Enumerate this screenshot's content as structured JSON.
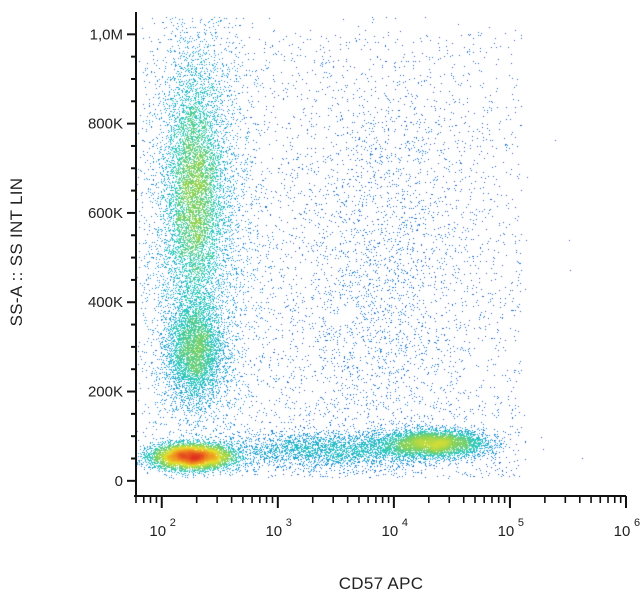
{
  "chart_data": {
    "type": "scatter",
    "subtype": "flow-cytometry-density-dot-plot",
    "title": "",
    "xlabel": "CD57 APC",
    "ylabel": "SS-A :: SS INT LIN",
    "x_scale": "log",
    "y_scale": "linear",
    "xlim": [
      60,
      1000000
    ],
    "ylim": [
      -25000,
      1050000
    ],
    "x_ticks": [
      {
        "value": 100,
        "label": "10",
        "exp": "2"
      },
      {
        "value": 1000,
        "label": "10",
        "exp": "3"
      },
      {
        "value": 10000,
        "label": "10",
        "exp": "4"
      },
      {
        "value": 100000,
        "label": "10",
        "exp": "5"
      },
      {
        "value": 1000000,
        "label": "10",
        "exp": "6"
      }
    ],
    "y_ticks": [
      {
        "value": 0,
        "label": "0"
      },
      {
        "value": 200000,
        "label": "200K"
      },
      {
        "value": 400000,
        "label": "400K"
      },
      {
        "value": 600000,
        "label": "600K"
      },
      {
        "value": 800000,
        "label": "800K"
      },
      {
        "value": 1000000,
        "label": "1,0M"
      }
    ],
    "grid": false,
    "legend": "none",
    "colormap": [
      "#2a3db5",
      "#1e8fd8",
      "#2ec9c4",
      "#8ad35a",
      "#e8e02a",
      "#f08a1e",
      "#e0301e"
    ],
    "populations": [
      {
        "x": 180,
        "y": 55000,
        "sx_decades": 0.17,
        "sy": 14000,
        "weight": 0.17
      },
      {
        "x": 190,
        "y": 650000,
        "sx_decades": 0.12,
        "sy": 130000,
        "weight": 0.2
      },
      {
        "x": 190,
        "y": 290000,
        "sx_decades": 0.12,
        "sy": 55000,
        "weight": 0.07
      },
      {
        "x": 200,
        "y": 550000,
        "sx_decades": 0.25,
        "sy": 280000,
        "weight": 0.2
      },
      {
        "x": 22000,
        "y": 85000,
        "sx_decades": 0.22,
        "sy": 15000,
        "weight": 0.08
      },
      {
        "x": 3000,
        "y": 70000,
        "sx_decades": 0.5,
        "sy": 20000,
        "weight": 0.05
      },
      {
        "x": 8000,
        "y": 450000,
        "sx_decades": 0.45,
        "sy": 260000,
        "weight": 0.04
      }
    ]
  }
}
